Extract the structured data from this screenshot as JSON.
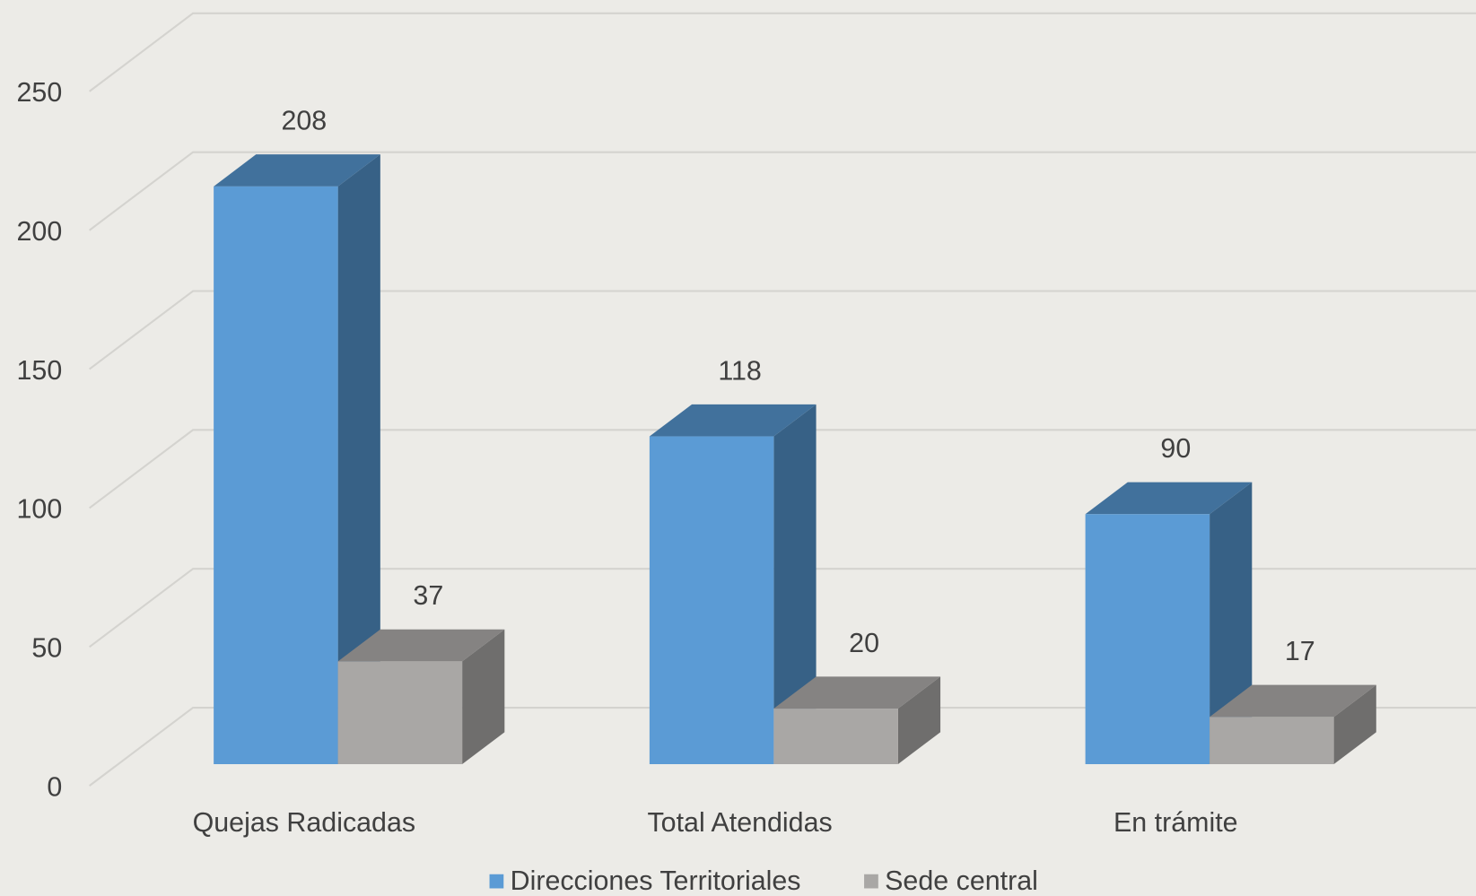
{
  "chart_data": {
    "type": "bar3d",
    "categories": [
      "Quejas Radicadas",
      "Total Atendidas",
      "En trámite"
    ],
    "series": [
      {
        "name": "Direcciones Territoriales",
        "color": "#5b9bd5",
        "values": [
          208,
          118,
          90
        ]
      },
      {
        "name": "Sede central",
        "color": "#a9a7a5",
        "values": [
          37,
          20,
          17
        ]
      }
    ],
    "ylim": [
      0,
      250
    ],
    "yticks": [
      0,
      50,
      100,
      150,
      200,
      250
    ],
    "grid": true,
    "legend": "bottom"
  }
}
